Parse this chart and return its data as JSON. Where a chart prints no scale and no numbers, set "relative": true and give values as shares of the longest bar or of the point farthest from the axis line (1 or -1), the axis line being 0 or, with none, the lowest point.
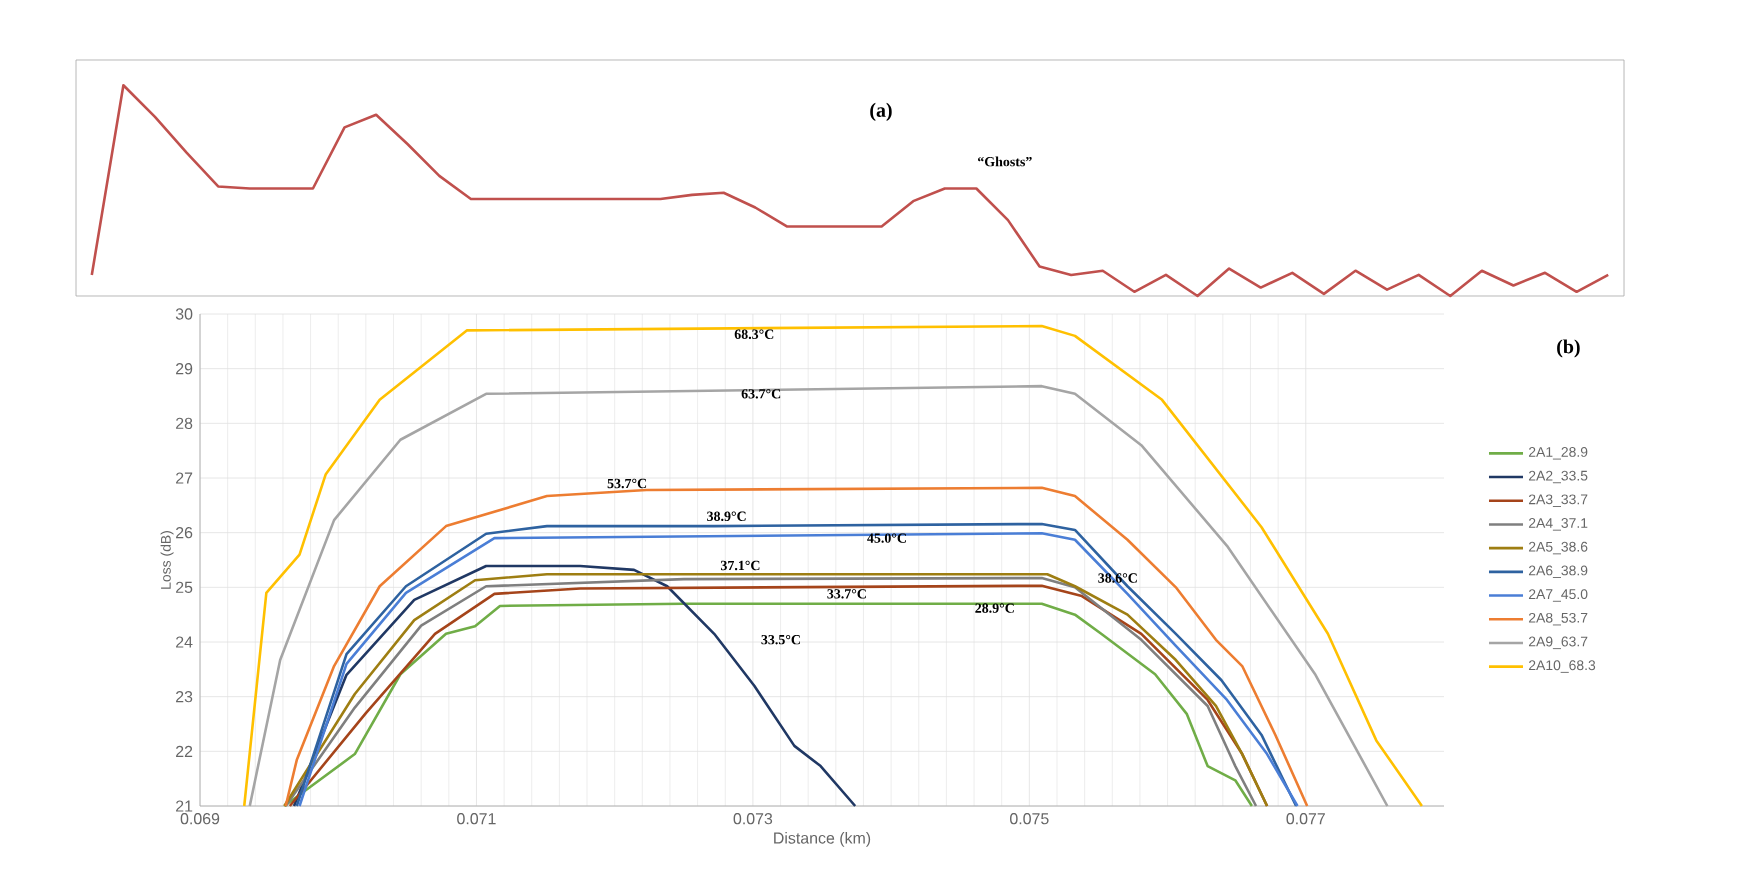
{
  "chart_data": [
    {
      "type": "line",
      "relative": true,
      "categories": [
        null,
        null,
        null,
        null,
        null,
        null,
        null,
        null,
        null,
        null,
        null,
        null,
        null,
        null,
        null,
        null,
        null,
        null,
        null,
        null,
        null,
        null,
        null,
        null,
        null,
        null,
        null,
        null,
        null,
        null,
        null,
        null,
        null,
        null,
        null,
        null,
        null,
        null,
        null,
        null,
        null,
        null,
        null,
        null,
        null,
        null,
        null,
        null,
        null
      ],
      "series": [
        {
          "color": "#c0504d",
          "values": [
            0.1,
            1.0,
            0.85,
            0.68,
            0.52,
            0.51,
            0.51,
            0.51,
            0.8,
            0.86,
            0.72,
            0.57,
            0.46,
            0.46,
            0.46,
            0.46,
            0.46,
            0.46,
            0.46,
            0.48,
            0.49,
            0.42,
            0.33,
            0.33,
            0.33,
            0.33,
            0.45,
            0.51,
            0.51,
            0.36,
            0.14,
            0.1,
            0.12,
            0.02,
            0.1,
            0.0,
            0.13,
            0.04,
            0.11,
            0.01,
            0.12,
            0.03,
            0.1,
            0.0,
            0.12,
            0.05,
            0.11,
            0.02,
            0.1
          ]
        }
      ],
      "annotations": [
        "(a)",
        "“Ghosts”"
      ]
    },
    {
      "type": "line",
      "xlabel": "Distance (km)",
      "ylabel": "Loss (dB)",
      "xlim": [
        0.069,
        0.078
      ],
      "ylim": [
        21,
        30
      ],
      "xticks": [
        0.069,
        0.071,
        0.073,
        0.075,
        0.077
      ],
      "yticks": [
        21,
        22,
        23,
        24,
        25,
        26,
        27,
        28,
        29,
        30
      ],
      "grid": true,
      "legend": "right",
      "series": [
        {
          "name": "2A1_28.9",
          "color": "#70ad47",
          "x": [
            0.06961,
            0.07012,
            0.07045,
            0.07078,
            0.07099,
            0.07117,
            0.0725,
            0.07509,
            0.07533,
            0.07552,
            0.07591,
            0.07614,
            0.07629,
            0.07649,
            0.07661
          ],
          "values": [
            21,
            21.95,
            23.41,
            24.15,
            24.29,
            24.66,
            24.7,
            24.7,
            24.5,
            24.15,
            23.41,
            22.68,
            21.73,
            21.47,
            21
          ]
        },
        {
          "name": "2A2_33.5",
          "color": "#203864",
          "x": [
            0.06968,
            0.07006,
            0.07055,
            0.07107,
            0.07175,
            0.07214,
            0.07238,
            0.07272,
            0.07301,
            0.0733,
            0.07349,
            0.07374
          ],
          "values": [
            21,
            23.4,
            24.77,
            25.39,
            25.39,
            25.32,
            25.02,
            24.15,
            23.2,
            22.1,
            21.73,
            21
          ]
        },
        {
          "name": "2A3_33.7",
          "color": "#a5441a",
          "x": [
            0.06965,
            0.0702,
            0.0707,
            0.07113,
            0.07175,
            0.07509,
            0.07538,
            0.07581,
            0.07629,
            0.07654,
            0.07672
          ],
          "values": [
            21,
            22.7,
            24.15,
            24.88,
            24.98,
            25.03,
            24.84,
            24.15,
            22.94,
            21.95,
            21
          ]
        },
        {
          "name": "2A4_37.1",
          "color": "#7f7f7f",
          "x": [
            0.06962,
            0.07012,
            0.0706,
            0.07107,
            0.0725,
            0.07509,
            0.07533,
            0.07581,
            0.07629,
            0.07649,
            0.07664
          ],
          "values": [
            21,
            22.8,
            24.3,
            25.02,
            25.15,
            25.17,
            25.0,
            24.04,
            22.83,
            21.73,
            21
          ]
        },
        {
          "name": "2A5_38.6",
          "color": "#9e7e12",
          "x": [
            0.06961,
            0.07012,
            0.07055,
            0.07099,
            0.07151,
            0.07513,
            0.07533,
            0.07571,
            0.07606,
            0.07635,
            0.07654,
            0.07672
          ],
          "values": [
            21,
            23.05,
            24.4,
            25.13,
            25.24,
            25.24,
            25.02,
            24.5,
            23.67,
            22.83,
            21.95,
            21
          ]
        },
        {
          "name": "2A6_38.9",
          "color": "#2e62a0",
          "x": [
            0.0697,
            0.07006,
            0.07049,
            0.07107,
            0.07151,
            0.07272,
            0.07509,
            0.07533,
            0.07571,
            0.07606,
            0.07639,
            0.07668,
            0.07693
          ],
          "values": [
            21,
            23.78,
            25.02,
            25.98,
            26.12,
            26.12,
            26.16,
            26.05,
            25.02,
            24.15,
            23.3,
            22.3,
            21
          ]
        },
        {
          "name": "2A7_45.0",
          "color": "#4a7ed6",
          "x": [
            0.06972,
            0.07006,
            0.07049,
            0.07113,
            0.07509,
            0.07533,
            0.07571,
            0.07606,
            0.07643,
            0.07672,
            0.07694
          ],
          "values": [
            21,
            23.6,
            24.9,
            25.9,
            25.99,
            25.87,
            24.88,
            23.93,
            22.94,
            21.95,
            21
          ]
        },
        {
          "name": "2A8_53.7",
          "color": "#ed7d31",
          "x": [
            0.06962,
            0.0697,
            0.06997,
            0.0703,
            0.07078,
            0.07151,
            0.07223,
            0.07509,
            0.07533,
            0.07571,
            0.07606,
            0.07635,
            0.07654,
            0.07678,
            0.07701
          ],
          "values": [
            21,
            21.84,
            23.56,
            25.02,
            26.12,
            26.67,
            26.78,
            26.82,
            26.67,
            25.87,
            25.0,
            24.04,
            23.56,
            22.3,
            21
          ]
        },
        {
          "name": "2A9_63.7",
          "color": "#a5a5a5",
          "x": [
            0.06936,
            0.06958,
            0.06997,
            0.07045,
            0.07107,
            0.07509,
            0.07533,
            0.07581,
            0.07643,
            0.07707,
            0.07759
          ],
          "values": [
            21,
            23.67,
            26.23,
            27.7,
            28.54,
            28.68,
            28.54,
            27.6,
            25.76,
            23.4,
            21
          ]
        },
        {
          "name": "2A10_68.3",
          "color": "#ffc000",
          "x": [
            0.06932,
            0.06948,
            0.06972,
            0.06991,
            0.0703,
            0.07093,
            0.07509,
            0.07533,
            0.07596,
            0.07668,
            0.07716,
            0.07751,
            0.07784
          ],
          "values": [
            21,
            24.9,
            25.6,
            27.07,
            28.43,
            29.7,
            29.78,
            29.6,
            28.43,
            26.1,
            24.15,
            22.2,
            21
          ]
        }
      ],
      "annotations": [
        "(b)",
        {
          "text": "68.3°C",
          "x": 0.07301,
          "y": 29.63
        },
        {
          "text": "63.7°C",
          "x": 0.07306,
          "y": 28.54
        },
        {
          "text": "53.7°C",
          "x": 0.07209,
          "y": 26.9
        },
        {
          "text": "38.9°C",
          "x": 0.07281,
          "y": 26.3
        },
        {
          "text": "45.0°C",
          "x": 0.07397,
          "y": 25.9
        },
        {
          "text": "37.1°C",
          "x": 0.07291,
          "y": 25.4
        },
        {
          "text": "33.7°C",
          "x": 0.07368,
          "y": 24.88
        },
        {
          "text": "38.6°C",
          "x": 0.07564,
          "y": 25.17
        },
        {
          "text": "28.9°C",
          "x": 0.07475,
          "y": 24.62
        },
        "33.5°C"
      ]
    }
  ]
}
